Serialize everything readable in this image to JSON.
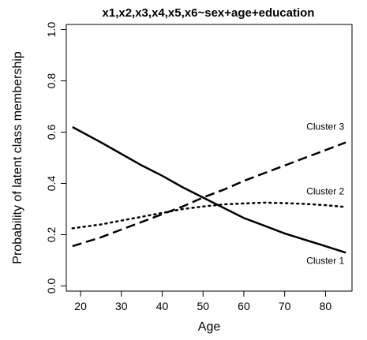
{
  "chart_data": {
    "type": "line",
    "title": "x1,x2,x3,x4,x5,x6~sex+age+education",
    "xlabel": "Age",
    "ylabel": "Probability of latent class membership",
    "xlim": [
      16.5,
      86.5
    ],
    "ylim": [
      -0.02,
      1.02
    ],
    "xticks": [
      "20",
      "30",
      "40",
      "50",
      "60",
      "70",
      "80"
    ],
    "yticks": [
      "0.0",
      "0.2",
      "0.4",
      "0.6",
      "0.8",
      "1.0"
    ],
    "xtick_values": [
      20,
      30,
      40,
      50,
      60,
      70,
      80
    ],
    "ytick_values": [
      0.0,
      0.2,
      0.4,
      0.6,
      0.8,
      1.0
    ],
    "grid": false,
    "legend": "none",
    "series": [
      {
        "name": "Cluster 1",
        "style": "solid",
        "x": [
          18,
          25,
          30,
          35,
          40,
          45,
          50,
          55,
          60,
          65,
          70,
          75,
          80,
          85
        ],
        "values": [
          0.62,
          0.56,
          0.515,
          0.47,
          0.43,
          0.385,
          0.345,
          0.305,
          0.265,
          0.235,
          0.205,
          0.18,
          0.155,
          0.13
        ]
      },
      {
        "name": "Cluster 2",
        "style": "dotted",
        "x": [
          18,
          25,
          30,
          35,
          40,
          45,
          50,
          55,
          60,
          65,
          70,
          75,
          80,
          85
        ],
        "values": [
          0.225,
          0.24,
          0.255,
          0.27,
          0.285,
          0.3,
          0.31,
          0.318,
          0.322,
          0.325,
          0.323,
          0.32,
          0.315,
          0.308
        ]
      },
      {
        "name": "Cluster 3",
        "style": "dashed",
        "x": [
          18,
          25,
          30,
          35,
          40,
          45,
          50,
          55,
          60,
          65,
          70,
          75,
          80,
          85
        ],
        "values": [
          0.155,
          0.19,
          0.22,
          0.25,
          0.28,
          0.31,
          0.345,
          0.375,
          0.41,
          0.44,
          0.47,
          0.5,
          0.53,
          0.56
        ]
      }
    ]
  }
}
